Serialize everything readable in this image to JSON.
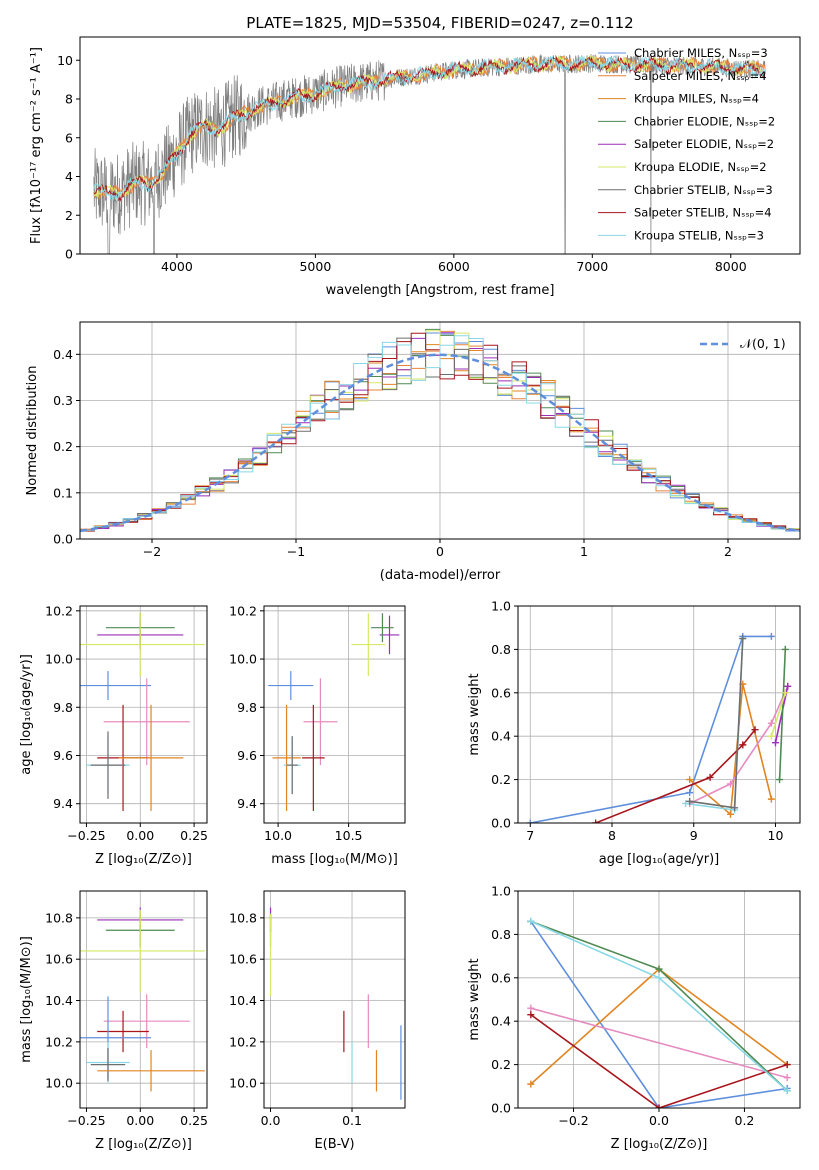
{
  "colors": {
    "Chabrier MILES": "#5f8fdc",
    "Salpeter MILES": "#e8833a",
    "Kroupa MILES": "#e08522",
    "Chabrier ELODIE": "#4f8a52",
    "Salpeter ELODIE": "#9b2fb8",
    "Kroupa ELODIE": "#d6e866",
    "Chabrier STELIB": "#6e6e6e",
    "Salpeter STELIB": "#a8161c",
    "Kroupa STELIB": "#88d8e6",
    "pink": "#e58bc0",
    "normal": "#5f8fdc",
    "grid": "#b0b0b0"
  },
  "chart_data": [
    {
      "id": "spectrum",
      "type": "line",
      "title": "PLATE=1825, MJD=53504, FIBERID=0247, z=0.112",
      "xlabel": "wavelength [Angstrom, rest frame]",
      "ylabel": "Flux [fλ10⁻¹⁷ erg cm⁻² s⁻¹ A⁻¹]",
      "xlim": [
        3300,
        8500
      ],
      "ylim": [
        0,
        11.2
      ],
      "xticks": [
        "4000",
        "5000",
        "6000",
        "7000",
        "8000"
      ],
      "yticks": [
        "0",
        "2",
        "4",
        "6",
        "8",
        "10"
      ],
      "grid": false,
      "legend_position": "top-right",
      "legend": [
        "Chabrier MILES, Nₛₛₚ=3",
        "Salpeter MILES, Nₛₛₚ=4",
        "Kroupa MILES, Nₛₛₚ=4",
        "Chabrier ELODIE, Nₛₛₚ=2",
        "Salpeter ELODIE, Nₛₛₚ=2",
        "Kroupa ELODIE, Nₛₛₚ=2",
        "Chabrier STELIB, Nₛₛₚ=3",
        "Salpeter STELIB, Nₛₛₚ=4",
        "Kroupa STELIB, Nₛₛₚ=3"
      ],
      "continuum": {
        "x": [
          3400,
          3500,
          3600,
          3700,
          3800,
          3900,
          4000,
          4100,
          4200,
          4300,
          4400,
          4500,
          4600,
          4800,
          5000,
          5200,
          5400,
          5600,
          5800,
          6000,
          6200,
          6400,
          6600,
          6800,
          7000,
          7200,
          7500,
          7800,
          8000,
          8250
        ],
        "y": [
          3.3,
          3.1,
          3.2,
          3.7,
          3.6,
          4.2,
          5.2,
          6.2,
          6.6,
          6.4,
          7.0,
          7.3,
          7.6,
          8.0,
          8.3,
          8.7,
          8.9,
          9.1,
          9.3,
          9.5,
          9.6,
          9.7,
          9.8,
          9.8,
          9.85,
          9.8,
          9.75,
          9.7,
          9.6,
          9.5
        ]
      }
    },
    {
      "id": "residual-histogram",
      "type": "line",
      "xlabel": "(data-model)/error",
      "ylabel": "Normed distribution",
      "xlim": [
        -2.5,
        2.5
      ],
      "ylim": [
        0,
        0.47
      ],
      "xticks": [
        "−2",
        "−1",
        "0",
        "1",
        "2"
      ],
      "yticks": [
        "0.0",
        "0.1",
        "0.2",
        "0.3",
        "0.4"
      ],
      "grid": true,
      "legend_position": "top-right",
      "legend": [
        "𝒩(0, 1)"
      ],
      "bins": {
        "start": -2.5,
        "width": 0.1,
        "count": 50
      }
    },
    {
      "id": "age-vs-z",
      "type": "scatter",
      "xlabel": "Z [log₁₀(Z/Z⊙)]",
      "ylabel": "age [log₁₀(age/yr)]",
      "xlim": [
        -0.28,
        0.31
      ],
      "ylim": [
        9.32,
        10.22
      ],
      "xticks": [
        "−0.25",
        "0.00",
        "0.25"
      ],
      "yticks": [
        "9.4",
        "9.6",
        "9.8",
        "10.0",
        "10.2"
      ],
      "grid": true,
      "points": [
        {
          "series": "Salpeter ELODIE",
          "x": 0.0,
          "xerr": 0.2,
          "y": 10.1,
          "yerr": 0.06
        },
        {
          "series": "Chabrier ELODIE",
          "x": 0.0,
          "xerr": 0.16,
          "y": 10.13,
          "yerr": 0.06
        },
        {
          "series": "Kroupa ELODIE",
          "x": 0.0,
          "xerr": 0.3,
          "y": 10.06,
          "yerr": 0.13
        },
        {
          "series": "Chabrier MILES",
          "x": -0.15,
          "xerr": 0.2,
          "y": 9.89,
          "yerr": 0.06
        },
        {
          "series": "pink",
          "x": 0.03,
          "xerr": 0.2,
          "y": 9.74,
          "yerr": 0.18
        },
        {
          "series": "Salpeter STELIB",
          "x": -0.08,
          "xerr": 0.12,
          "y": 9.59,
          "yerr": 0.22
        },
        {
          "series": "Kroupa MILES",
          "x": 0.05,
          "xerr": 0.15,
          "y": 9.59,
          "yerr": 0.22
        },
        {
          "series": "Kroupa STELIB",
          "x": -0.15,
          "xerr": 0.1,
          "y": 9.56,
          "yerr": 0.12
        },
        {
          "series": "Chabrier STELIB",
          "x": -0.15,
          "xerr": 0.08,
          "y": 9.56,
          "yerr": 0.14
        }
      ]
    },
    {
      "id": "age-vs-mass",
      "type": "scatter",
      "xlabel": "mass [log₁₀(M/M⊙)]",
      "xlim": [
        9.9,
        10.9
      ],
      "ylim": [
        9.32,
        10.22
      ],
      "xticks": [
        "10.0",
        "10.5"
      ],
      "yticks": [
        "9.4",
        "9.6",
        "9.8",
        "10.0",
        "10.2"
      ],
      "grid": true,
      "points": [
        {
          "series": "Salpeter ELODIE",
          "x": 10.79,
          "xerr": 0.07,
          "y": 10.1,
          "yerr": 0.08
        },
        {
          "series": "Chabrier ELODIE",
          "x": 10.74,
          "xerr": 0.08,
          "y": 10.13,
          "yerr": 0.06
        },
        {
          "series": "Kroupa ELODIE",
          "x": 10.64,
          "xerr": 0.12,
          "y": 10.06,
          "yerr": 0.13
        },
        {
          "series": "Chabrier MILES",
          "x": 10.09,
          "xerr": 0.16,
          "y": 9.89,
          "yerr": 0.06
        },
        {
          "series": "pink",
          "x": 10.3,
          "xerr": 0.12,
          "y": 9.74,
          "yerr": 0.18
        },
        {
          "series": "Salpeter STELIB",
          "x": 10.25,
          "xerr": 0.08,
          "y": 9.59,
          "yerr": 0.22
        },
        {
          "series": "Kroupa MILES",
          "x": 10.06,
          "xerr": 0.1,
          "y": 9.59,
          "yerr": 0.22
        },
        {
          "series": "Kroupa STELIB",
          "x": 10.1,
          "xerr": 0.06,
          "y": 9.56,
          "yerr": 0.12
        },
        {
          "series": "Chabrier STELIB",
          "x": 10.1,
          "xerr": 0.04,
          "y": 9.56,
          "yerr": 0.12
        }
      ]
    },
    {
      "id": "mass-weight-vs-age",
      "type": "line",
      "xlabel": "age [log₁₀(age/yr)]",
      "ylabel": "mass weight",
      "xlim": [
        6.85,
        10.3
      ],
      "ylim": [
        0,
        1.0
      ],
      "xticks": [
        "7",
        "8",
        "9",
        "10"
      ],
      "yticks": [
        "0.0",
        "0.2",
        "0.4",
        "0.6",
        "0.8",
        "1.0"
      ],
      "grid": true,
      "series": [
        {
          "series": "Chabrier MILES",
          "x": [
            7.0,
            8.95,
            9.6,
            9.95
          ],
          "y": [
            0.0,
            0.14,
            0.86,
            0.86
          ]
        },
        {
          "series": "Kroupa MILES",
          "x": [
            8.95,
            9.45,
            9.6,
            9.95
          ],
          "y": [
            0.2,
            0.04,
            0.64,
            0.11
          ]
        },
        {
          "series": "Salpeter STELIB",
          "x": [
            7.8,
            9.2,
            9.6,
            9.75
          ],
          "y": [
            0.0,
            0.21,
            0.36,
            0.43
          ]
        },
        {
          "series": "pink",
          "x": [
            8.95,
            9.45,
            9.95,
            10.15
          ],
          "y": [
            0.09,
            0.18,
            0.46,
            0.63
          ]
        },
        {
          "series": "Salpeter ELODIE",
          "x": [
            10.0,
            10.15
          ],
          "y": [
            0.37,
            0.63
          ]
        },
        {
          "series": "Chabrier ELODIE",
          "x": [
            10.05,
            10.12
          ],
          "y": [
            0.2,
            0.8
          ]
        },
        {
          "series": "Kroupa ELODIE",
          "x": [
            9.95,
            10.12
          ],
          "y": [
            0.4,
            0.6
          ]
        },
        {
          "series": "Kroupa STELIB",
          "x": [
            8.9,
            9.5,
            9.6
          ],
          "y": [
            0.09,
            0.06,
            0.85
          ]
        },
        {
          "series": "Chabrier STELIB",
          "x": [
            8.95,
            9.5,
            9.6
          ],
          "y": [
            0.1,
            0.07,
            0.85
          ]
        }
      ]
    },
    {
      "id": "mass-vs-z",
      "type": "scatter",
      "xlabel": "Z [log₁₀(Z/Z⊙)]",
      "ylabel": "mass [log₁₀(M/M⊙)]",
      "xlim": [
        -0.28,
        0.31
      ],
      "ylim": [
        9.88,
        10.93
      ],
      "xticks": [
        "−0.25",
        "0.00",
        "0.25"
      ],
      "yticks": [
        "10.0",
        "10.2",
        "10.4",
        "10.6",
        "10.8"
      ],
      "grid": true,
      "points": [
        {
          "series": "Salpeter ELODIE",
          "x": 0.0,
          "xerr": 0.2,
          "y": 10.79,
          "yerr": 0.06
        },
        {
          "series": "Chabrier ELODIE",
          "x": 0.0,
          "xerr": 0.16,
          "y": 10.74,
          "yerr": 0.08
        },
        {
          "series": "Kroupa ELODIE",
          "x": 0.0,
          "xerr": 0.3,
          "y": 10.64,
          "yerr": 0.2
        },
        {
          "series": "pink",
          "x": 0.03,
          "xerr": 0.2,
          "y": 10.3,
          "yerr": 0.13
        },
        {
          "series": "Salpeter STELIB",
          "x": -0.08,
          "xerr": 0.12,
          "y": 10.25,
          "yerr": 0.1
        },
        {
          "series": "Chabrier MILES",
          "x": -0.15,
          "xerr": 0.2,
          "y": 10.22,
          "yerr": 0.2
        },
        {
          "series": "Kroupa STELIB",
          "x": -0.15,
          "xerr": 0.1,
          "y": 10.1,
          "yerr": 0.1
        },
        {
          "series": "Chabrier STELIB",
          "x": -0.15,
          "xerr": 0.08,
          "y": 10.09,
          "yerr": 0.08
        },
        {
          "series": "Kroupa MILES",
          "x": 0.05,
          "xerr": 0.25,
          "y": 10.06,
          "yerr": 0.1
        }
      ]
    },
    {
      "id": "mass-vs-ebv",
      "type": "scatter",
      "xlabel": "E(B-V)",
      "xlim": [
        -0.008,
        0.165
      ],
      "ylim": [
        9.88,
        10.93
      ],
      "xticks": [
        "0.0",
        "0.1"
      ],
      "yticks": [
        "10.0",
        "10.2",
        "10.4",
        "10.6",
        "10.8"
      ],
      "grid": true,
      "points": [
        {
          "series": "Salpeter ELODIE",
          "x": 0.0,
          "y": 10.79,
          "yerr": 0.06
        },
        {
          "series": "Chabrier ELODIE",
          "x": 0.0,
          "y": 10.74,
          "yerr": 0.08
        },
        {
          "series": "Kroupa ELODIE",
          "x": 0.0,
          "y": 10.62,
          "yerr": 0.2
        },
        {
          "series": "Salpeter STELIB",
          "x": 0.09,
          "y": 10.25,
          "yerr": 0.1
        },
        {
          "series": "Kroupa STELIB",
          "x": 0.1,
          "y": 10.1,
          "yerr": 0.1
        },
        {
          "series": "pink",
          "x": 0.12,
          "y": 10.3,
          "yerr": 0.13
        },
        {
          "series": "Kroupa MILES",
          "x": 0.13,
          "y": 10.06,
          "yerr": 0.1
        },
        {
          "series": "Chabrier MILES",
          "x": 0.16,
          "y": 10.1,
          "yerr": 0.18
        }
      ]
    },
    {
      "id": "mass-weight-vs-z",
      "type": "line",
      "xlabel": "Z [log₁₀(Z/Z⊙)]",
      "ylabel": "mass weight",
      "xlim": [
        -0.33,
        0.33
      ],
      "ylim": [
        0,
        1.0
      ],
      "xticks": [
        "−0.2",
        "0.0",
        "0.2"
      ],
      "yticks": [
        "0.0",
        "0.2",
        "0.4",
        "0.6",
        "0.8",
        "1.0"
      ],
      "grid": true,
      "series": [
        {
          "series": "Chabrier MILES",
          "x": [
            -0.3,
            0.0,
            0.3
          ],
          "y": [
            0.86,
            0.0,
            0.09
          ]
        },
        {
          "series": "Kroupa MILES",
          "x": [
            -0.3,
            0.0,
            0.3
          ],
          "y": [
            0.11,
            0.64,
            0.2
          ]
        },
        {
          "series": "pink",
          "x": [
            -0.3,
            0.3
          ],
          "y": [
            0.46,
            0.14
          ]
        },
        {
          "series": "Salpeter STELIB",
          "x": [
            -0.3,
            0.0,
            0.3
          ],
          "y": [
            0.43,
            0.0,
            0.2
          ]
        },
        {
          "series": "Chabrier ELODIE",
          "x": [
            -0.3,
            0.0,
            0.3
          ],
          "y": [
            0.86,
            0.64,
            0.08
          ]
        },
        {
          "series": "Kroupa STELIB",
          "x": [
            -0.3,
            0.0,
            0.3
          ],
          "y": [
            0.86,
            0.6,
            0.08
          ]
        }
      ]
    }
  ]
}
